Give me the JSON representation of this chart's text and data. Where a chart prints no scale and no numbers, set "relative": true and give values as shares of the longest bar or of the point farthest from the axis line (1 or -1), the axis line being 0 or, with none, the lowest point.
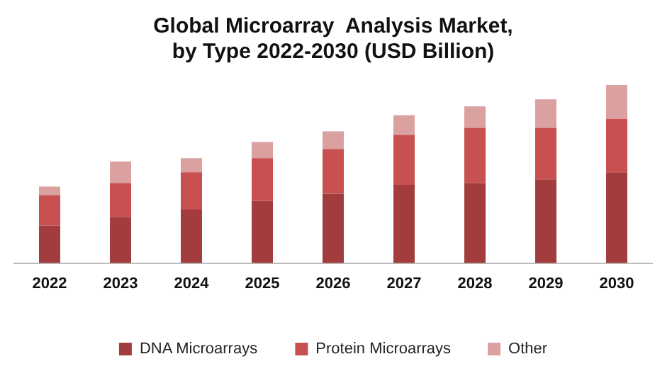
{
  "chart_data": {
    "type": "bar",
    "stacked": true,
    "relative": true,
    "title": "Global Microarray  Analysis Market,\nby Type 2022-2030 (USD Billion)",
    "categories": [
      "2022",
      "2023",
      "2024",
      "2025",
      "2026",
      "2027",
      "2028",
      "2029",
      "2030"
    ],
    "legend": "bottom",
    "grid": false,
    "series": [
      {
        "name": "DNA Microarrays",
        "color": "#a33c3c",
        "values": [
          0.21,
          0.26,
          0.3,
          0.35,
          0.39,
          0.44,
          0.45,
          0.47,
          0.51
        ]
      },
      {
        "name": "Protein Microarrays",
        "color": "#c85050",
        "values": [
          0.17,
          0.19,
          0.21,
          0.24,
          0.25,
          0.28,
          0.31,
          0.29,
          0.3
        ]
      },
      {
        "name": "Other",
        "color": "#dba0a0",
        "values": [
          0.05,
          0.12,
          0.08,
          0.09,
          0.1,
          0.11,
          0.12,
          0.16,
          0.19
        ]
      }
    ]
  }
}
